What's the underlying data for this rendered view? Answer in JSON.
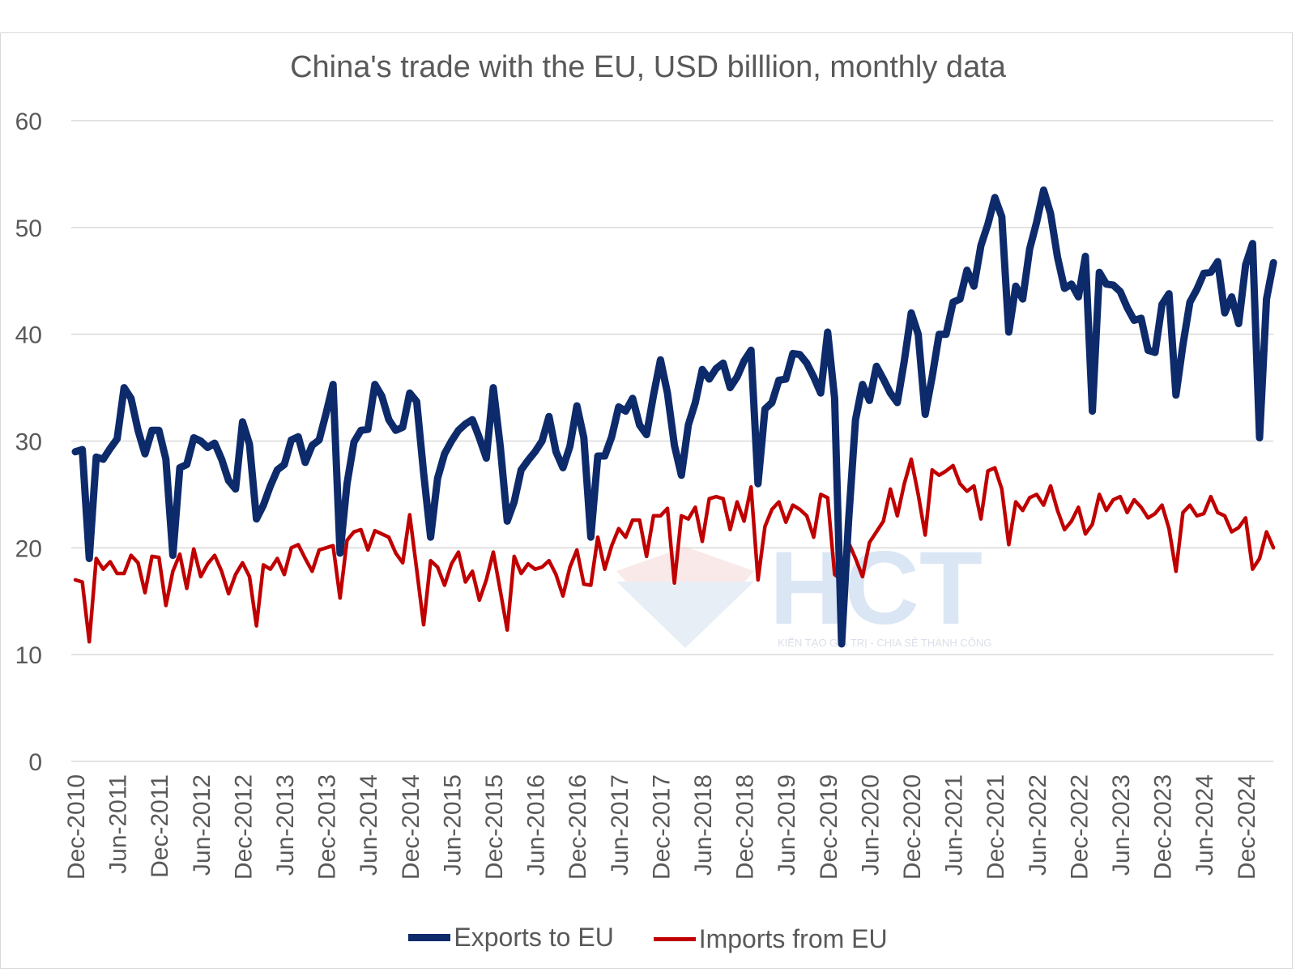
{
  "chart_data": {
    "type": "line",
    "title": "China's trade with the EU, USD billlion, monthly data",
    "xlabel": "",
    "ylabel": "",
    "ylim": [
      0,
      60
    ],
    "yticks": [
      0,
      10,
      20,
      30,
      40,
      50,
      60
    ],
    "grid": "horizontal",
    "legend_position": "bottom",
    "x_tick_labels": [
      "Dec-2010",
      "Jun-2011",
      "Dec-2011",
      "Jun-2012",
      "Dec-2012",
      "Jun-2013",
      "Dec-2013",
      "Jun-2014",
      "Dec-2014",
      "Jun-2015",
      "Dec-2015",
      "Jun-2016",
      "Dec-2016",
      "Jun-2017",
      "Dec-2017",
      "Jun-2018",
      "Dec-2018",
      "Jun-2019",
      "Dec-2019",
      "Jun-2020",
      "Dec-2020",
      "Jun-2021",
      "Dec-2021",
      "Jun-2022",
      "Dec-2022",
      "Jun-2023",
      "Dec-2023",
      "Jun-2024",
      "Dec-2024"
    ],
    "x_start": "Dec-2010",
    "x_frequency": "monthly",
    "series": [
      {
        "name": "Exports to EU",
        "color": "#0d2a6b",
        "values": [
          29.0,
          29.2,
          19.0,
          28.5,
          28.3,
          29.3,
          30.2,
          35.0,
          34.0,
          31.0,
          28.8,
          31.0,
          31.0,
          28.3,
          19.3,
          27.5,
          27.8,
          30.3,
          30.0,
          29.4,
          29.8,
          28.3,
          26.3,
          25.5,
          31.8,
          29.7,
          22.7,
          24.0,
          25.8,
          27.3,
          27.8,
          30.1,
          30.4,
          28.0,
          29.6,
          30.1,
          32.6,
          35.3,
          19.5,
          26.0,
          29.9,
          31.0,
          31.1,
          35.3,
          34.2,
          32.0,
          31.0,
          31.3,
          34.5,
          33.7,
          27.0,
          21.0,
          26.5,
          28.8,
          30.0,
          31.0,
          31.6,
          32.0,
          30.3,
          28.4,
          35.0,
          29.5,
          22.5,
          24.3,
          27.3,
          28.2,
          29.0,
          30.0,
          32.3,
          29.0,
          27.5,
          29.5,
          33.3,
          30.3,
          21.0,
          28.6,
          28.6,
          30.4,
          33.2,
          32.8,
          34.0,
          31.5,
          30.6,
          34.3,
          37.6,
          34.5,
          29.6,
          26.8,
          31.5,
          33.6,
          36.7,
          35.8,
          36.8,
          37.3,
          35.0,
          36.0,
          37.5,
          38.5,
          26.0,
          33.0,
          33.6,
          35.7,
          35.8,
          38.2,
          38.1,
          37.3,
          36.0,
          34.5,
          40.2,
          34.0,
          11.0,
          22.5,
          32.0,
          35.3,
          33.8,
          37.0,
          35.8,
          34.5,
          33.6,
          37.5,
          42.0,
          40.0,
          32.5,
          36.0,
          40.0,
          40.0,
          43.0,
          43.3,
          46.0,
          44.5,
          48.3,
          50.3,
          52.8,
          51.0,
          40.2,
          44.5,
          43.3,
          48.0,
          50.5,
          53.5,
          51.3,
          47.2,
          44.3,
          44.7,
          43.5,
          47.3,
          32.8,
          45.8,
          44.7,
          44.6,
          44.0,
          42.5,
          41.3,
          41.5,
          38.5,
          38.3,
          42.8,
          43.8,
          34.3,
          39.0,
          43.0,
          44.2,
          45.7,
          45.8,
          46.8,
          42.0,
          43.5,
          41.0,
          46.5,
          48.5,
          30.3,
          43.3,
          46.7
        ]
      },
      {
        "name": "Imports from EU",
        "color": "#c00000",
        "values": [
          17.0,
          16.8,
          11.2,
          19.0,
          18.0,
          18.7,
          17.6,
          17.6,
          19.3,
          18.6,
          15.8,
          19.2,
          19.1,
          14.6,
          17.8,
          19.4,
          16.2,
          19.9,
          17.3,
          18.5,
          19.3,
          17.8,
          15.7,
          17.5,
          18.6,
          17.3,
          12.7,
          18.4,
          18.0,
          19.0,
          17.5,
          20.0,
          20.3,
          19.0,
          17.8,
          19.8,
          20.0,
          20.2,
          15.3,
          20.7,
          21.5,
          21.7,
          19.8,
          21.6,
          21.3,
          21.0,
          19.5,
          18.6,
          23.1,
          18.0,
          12.8,
          18.8,
          18.2,
          16.5,
          18.5,
          19.6,
          16.8,
          17.8,
          15.1,
          17.0,
          19.6,
          16.0,
          12.3,
          19.2,
          17.6,
          18.5,
          18.0,
          18.2,
          18.8,
          17.5,
          15.5,
          18.2,
          19.8,
          16.6,
          16.5,
          21.0,
          18.0,
          20.2,
          21.8,
          21.0,
          22.6,
          22.6,
          19.2,
          23.0,
          23.0,
          23.7,
          16.7,
          23.0,
          22.7,
          23.8,
          20.6,
          24.6,
          24.8,
          24.6,
          21.7,
          24.3,
          22.5,
          25.7,
          17.0,
          22.0,
          23.6,
          24.3,
          22.4,
          24.0,
          23.6,
          23.0,
          21.0,
          25.0,
          24.7,
          17.5,
          17.0,
          20.5,
          19.0,
          17.3,
          20.5,
          21.5,
          22.5,
          25.5,
          23.0,
          26.0,
          28.3,
          25.0,
          21.2,
          27.3,
          26.8,
          27.2,
          27.7,
          26.0,
          25.3,
          25.8,
          22.7,
          27.2,
          27.5,
          25.5,
          20.3,
          24.3,
          23.5,
          24.7,
          25.0,
          24.0,
          25.8,
          23.5,
          21.7,
          22.5,
          23.8,
          21.3,
          22.2,
          25.0,
          23.5,
          24.5,
          24.8,
          23.3,
          24.5,
          23.8,
          22.8,
          23.2,
          24.0,
          21.8,
          17.8,
          23.3,
          24.0,
          23.0,
          23.2,
          24.8,
          23.3,
          23.0,
          21.5,
          21.9,
          22.8,
          18.0,
          19.0,
          21.5,
          20.0
        ]
      }
    ]
  },
  "watermark": {
    "logo_text": "HCT",
    "tagline": "KIẾN TẠO GIÁ TRỊ - CHIA SẺ THÀNH CÔNG"
  }
}
